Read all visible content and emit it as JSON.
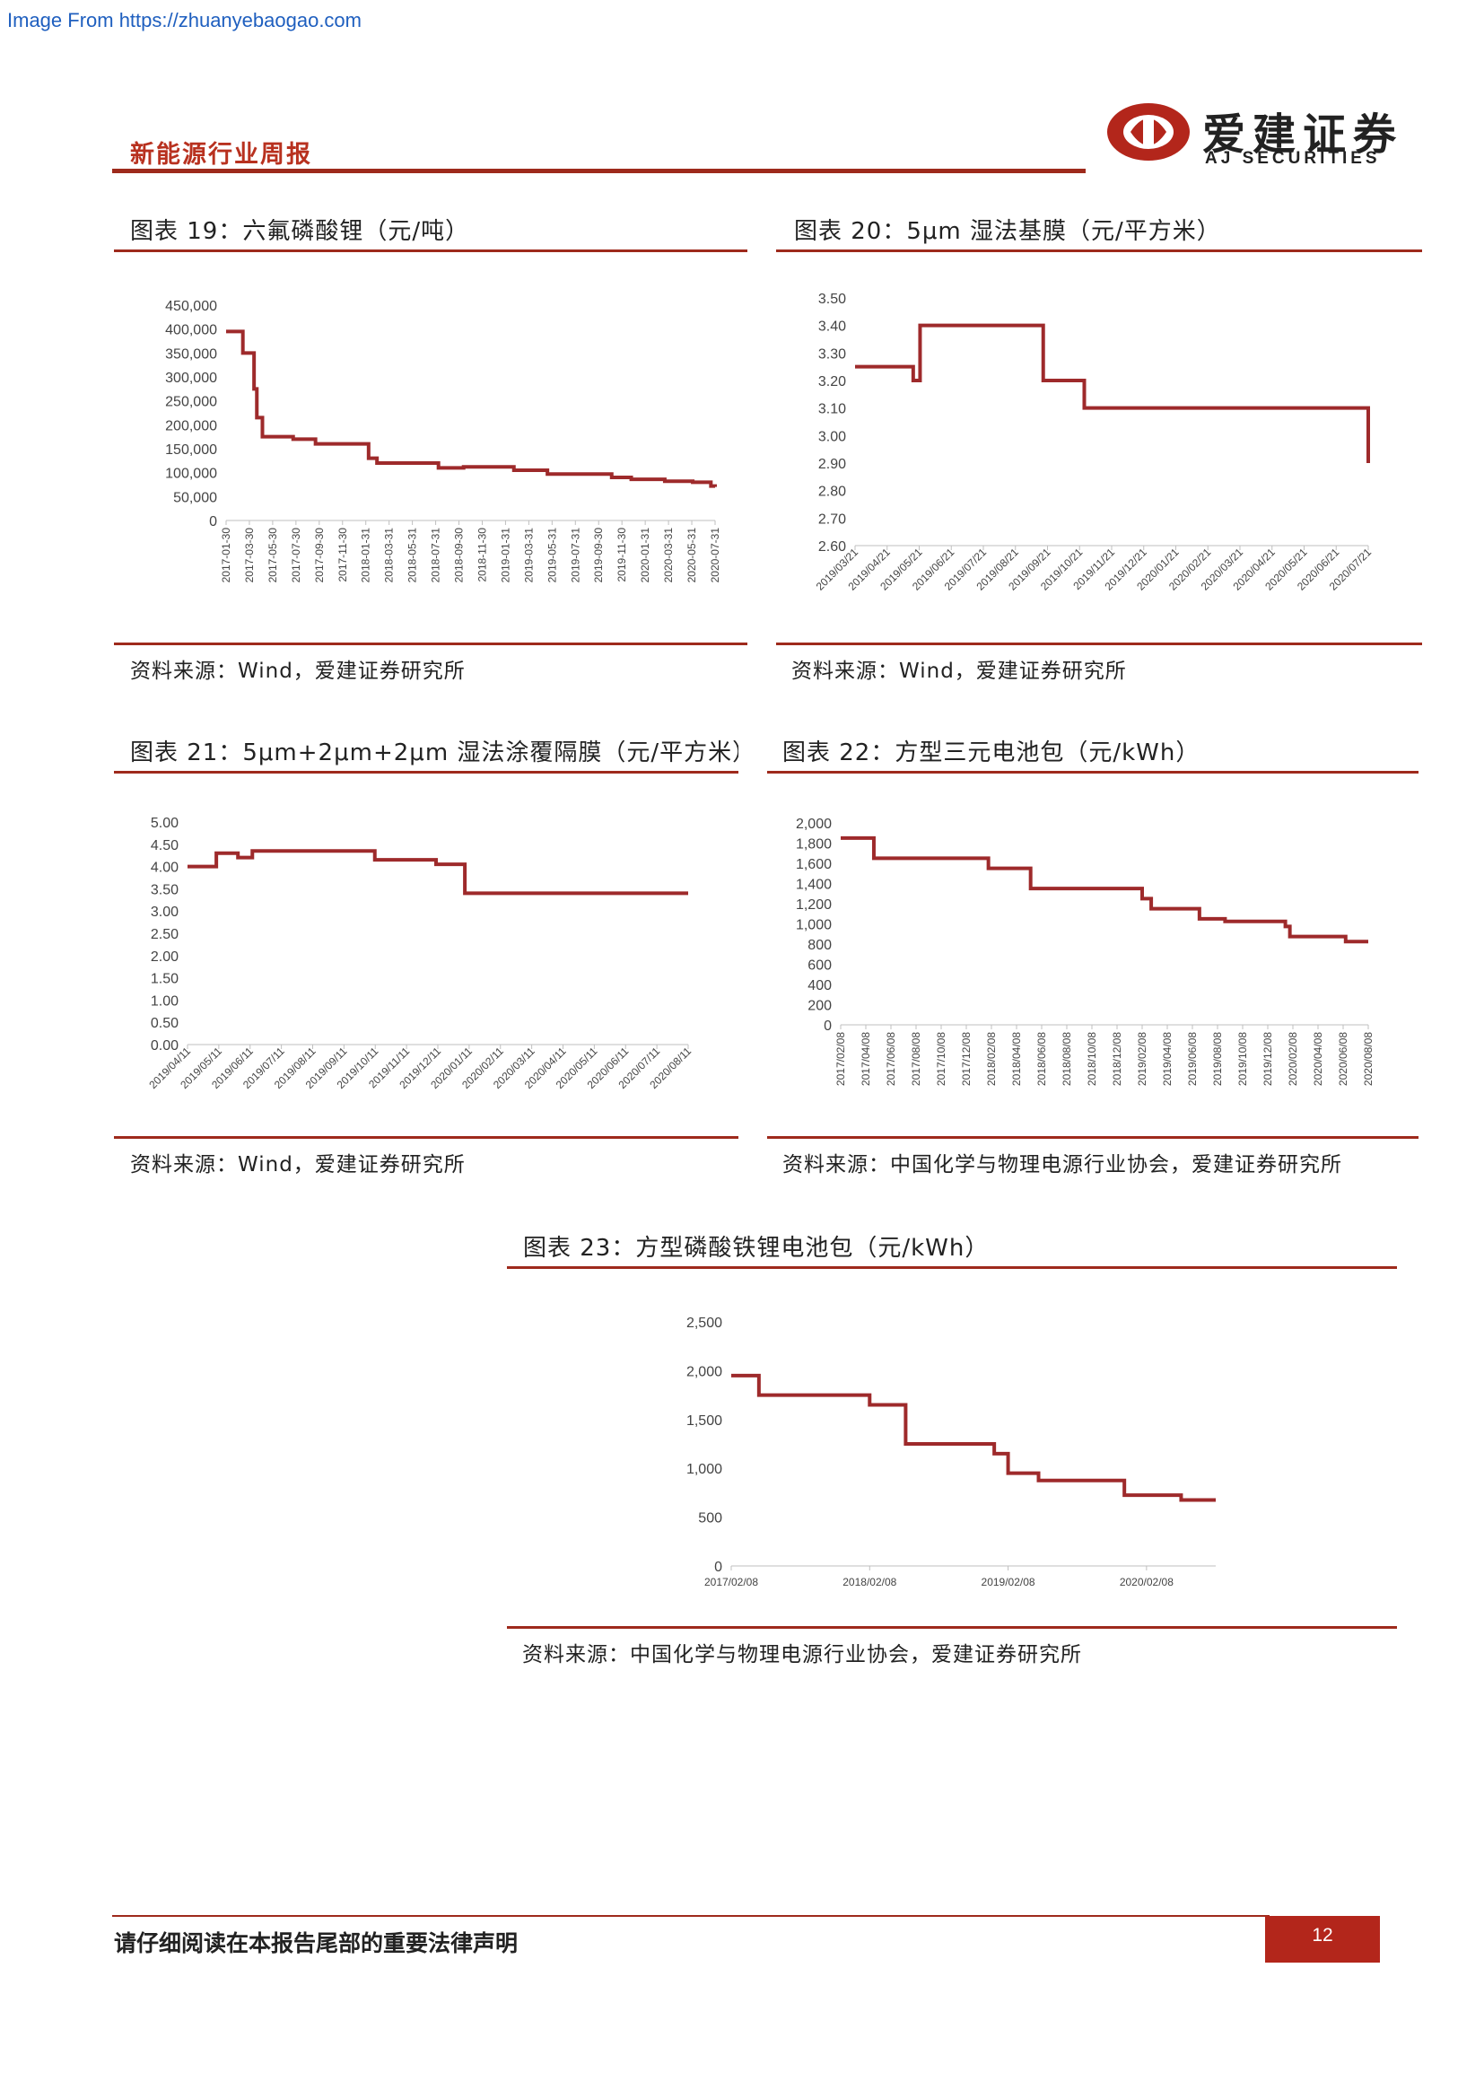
{
  "watermark": "Image From https://zhuanyebaogao.com",
  "header": {
    "report_name": "新能源行业周报",
    "brand_cn": "爱建证券",
    "brand_en": "AJ SECURITIES"
  },
  "charts": {
    "c19": {
      "title": "图表 19：六氟磷酸锂（元/吨）",
      "source": "资料来源：Wind，爱建证券研究所"
    },
    "c20": {
      "title": "图表 20：5μm 湿法基膜（元/平方米）",
      "source": "资料来源：Wind，爱建证券研究所"
    },
    "c21": {
      "title": "图表 21：5μm+2μm+2μm 湿法涂覆隔膜（元/平方米）",
      "source": "资料来源：Wind，爱建证券研究所"
    },
    "c22": {
      "title": "图表 22：方型三元电池包（元/kWh）",
      "source": "资料来源：中国化学与物理电源行业协会，爱建证券研究所"
    },
    "c23": {
      "title": "图表 23：方型磷酸铁锂电池包（元/kWh）",
      "source": "资料来源：中国化学与物理电源行业协会，爱建证券研究所"
    }
  },
  "footer": {
    "disclaimer": "请仔细阅读在本报告尾部的重要法律声明",
    "page_number": "12"
  },
  "colors": {
    "line": "#9e2a2b",
    "accent": "#9e2a1c",
    "page_box": "#b3261b"
  },
  "chart_data": [
    {
      "id": "c19",
      "type": "line",
      "style": "step",
      "ylim": [
        0,
        450000
      ],
      "yticks": [
        0,
        50000,
        100000,
        150000,
        200000,
        250000,
        300000,
        350000,
        400000,
        450000
      ],
      "ytick_labels": [
        "0",
        "50,000",
        "100,000",
        "150,000",
        "200,000",
        "250,000",
        "300,000",
        "350,000",
        "400,000",
        "450,000"
      ],
      "xlim": [
        2017.08,
        2020.58
      ],
      "xtick_labels": [
        "2017-01-30",
        "2017-03-30",
        "2017-05-30",
        "2017-07-30",
        "2017-09-30",
        "2017-11-30",
        "2018-01-31",
        "2018-03-31",
        "2018-05-31",
        "2018-07-31",
        "2018-09-30",
        "2018-11-30",
        "2019-01-31",
        "2019-03-31",
        "2019-05-31",
        "2019-07-31",
        "2019-09-30",
        "2019-11-30",
        "2020-01-31",
        "2020-03-31",
        "2020-05-31",
        "2020-07-31"
      ],
      "series": [
        {
          "x": [
            2017.08,
            2017.2,
            2017.28,
            2017.3,
            2017.34,
            2017.37,
            2017.41,
            2017.56,
            2017.72,
            2018.1,
            2018.16,
            2018.52,
            2018.6,
            2018.78,
            2019.14,
            2019.38,
            2019.65,
            2019.84,
            2019.98,
            2020.22,
            2020.42,
            2020.55,
            2020.58
          ],
          "y": [
            395000,
            350000,
            275000,
            215000,
            175000,
            175000,
            175000,
            170000,
            160000,
            130000,
            120000,
            120000,
            110000,
            112000,
            105000,
            97000,
            97000,
            90000,
            86000,
            82000,
            80000,
            72000,
            70000
          ]
        }
      ]
    },
    {
      "id": "c20",
      "type": "line",
      "style": "step",
      "ylim": [
        2.6,
        3.5
      ],
      "yticks": [
        2.6,
        2.7,
        2.8,
        2.9,
        3.0,
        3.1,
        3.2,
        3.3,
        3.4,
        3.5
      ],
      "ytick_labels": [
        "2.60",
        "2.70",
        "2.80",
        "2.90",
        "3.00",
        "3.10",
        "3.20",
        "3.30",
        "3.40",
        "3.50"
      ],
      "xlim": [
        2019.17,
        2020.67
      ],
      "xtick_labels": [
        "2019/03/21",
        "2019/04/21",
        "2019/05/21",
        "2019/06/21",
        "2019/07/21",
        "2019/08/21",
        "2019/09/21",
        "2019/10/21",
        "2019/11/21",
        "2019/12/21",
        "2020/01/21",
        "2020/02/21",
        "2020/03/21",
        "2020/04/21",
        "2020/05/21",
        "2020/06/21",
        "2020/07/21"
      ],
      "series": [
        {
          "x": [
            2019.17,
            2019.34,
            2019.36,
            2019.58,
            2019.72,
            2019.84,
            2020.67
          ],
          "y": [
            3.25,
            3.2,
            3.4,
            3.4,
            3.2,
            3.1,
            2.9
          ]
        }
      ]
    },
    {
      "id": "c21",
      "type": "line",
      "style": "step",
      "ylim": [
        0,
        5
      ],
      "yticks": [
        0,
        0.5,
        1,
        1.5,
        2,
        2.5,
        3,
        3.5,
        4,
        4.5,
        5
      ],
      "ytick_labels": [
        "0.00",
        "0.50",
        "1.00",
        "1.50",
        "2.00",
        "2.50",
        "3.00",
        "3.50",
        "4.00",
        "4.50",
        "5.00"
      ],
      "xlim": [
        2019.25,
        2020.64
      ],
      "xtick_labels": [
        "2019/04/11",
        "2019/05/11",
        "2019/06/11",
        "2019/07/11",
        "2019/08/11",
        "2019/09/11",
        "2019/10/11",
        "2019/11/11",
        "2019/12/11",
        "2020/01/11",
        "2020/02/11",
        "2020/03/11",
        "2020/04/11",
        "2020/05/11",
        "2020/06/11",
        "2020/07/11",
        "2020/08/11"
      ],
      "series": [
        {
          "x": [
            2019.25,
            2019.33,
            2019.39,
            2019.43,
            2019.77,
            2019.94,
            2020.02,
            2020.64
          ],
          "y": [
            4.0,
            4.3,
            4.2,
            4.35,
            4.15,
            4.05,
            3.4,
            3.4
          ]
        }
      ]
    },
    {
      "id": "c22",
      "type": "line",
      "style": "step",
      "ylim": [
        0,
        2000
      ],
      "yticks": [
        0,
        200,
        400,
        600,
        800,
        1000,
        1200,
        1400,
        1600,
        1800,
        2000
      ],
      "ytick_labels": [
        "0",
        "200",
        "400",
        "600",
        "800",
        "1,000",
        "1,200",
        "1,400",
        "1,600",
        "1,800",
        "2,000"
      ],
      "xlim": [
        2017.1,
        2020.6
      ],
      "xtick_labels": [
        "2017/02/08",
        "2017/04/08",
        "2017/06/08",
        "2017/08/08",
        "2017/10/08",
        "2017/12/08",
        "2018/02/08",
        "2018/04/08",
        "2018/06/08",
        "2018/08/08",
        "2018/10/08",
        "2018/12/08",
        "2019/02/08",
        "2019/04/08",
        "2019/06/08",
        "2019/08/08",
        "2019/10/08",
        "2019/12/08",
        "2020/02/08",
        "2020/04/08",
        "2020/06/08",
        "2020/08/08"
      ],
      "series": [
        {
          "x": [
            2017.1,
            2017.32,
            2018.08,
            2018.36,
            2019.1,
            2019.16,
            2019.3,
            2019.48,
            2019.65,
            2020.05,
            2020.08,
            2020.45,
            2020.6
          ],
          "y": [
            1850,
            1650,
            1550,
            1350,
            1250,
            1150,
            1150,
            1050,
            1025,
            975,
            875,
            825,
            825
          ]
        }
      ]
    },
    {
      "id": "c23",
      "type": "line",
      "style": "step",
      "ylim": [
        0,
        2500
      ],
      "yticks": [
        0,
        500,
        1000,
        1500,
        2000,
        2500
      ],
      "ytick_labels": [
        "0",
        "500",
        "1,000",
        "1,500",
        "2,000",
        "2,500"
      ],
      "xlim": [
        2017.1,
        2020.6
      ],
      "xtick_values": [
        2017.1,
        2018.1,
        2019.1,
        2020.1
      ],
      "xtick_labels": [
        "2017/02/08",
        "2018/02/08",
        "2019/02/08",
        "2020/02/08"
      ],
      "series": [
        {
          "x": [
            2017.1,
            2017.3,
            2018.1,
            2018.36,
            2019.0,
            2019.1,
            2019.32,
            2019.94,
            2020.35,
            2020.6
          ],
          "y": [
            1950,
            1750,
            1650,
            1250,
            1150,
            950,
            875,
            725,
            675,
            675
          ]
        }
      ]
    }
  ]
}
